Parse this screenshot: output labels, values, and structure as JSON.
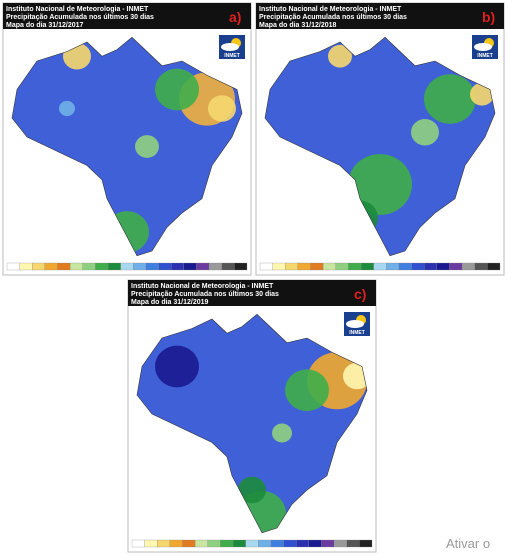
{
  "panels": [
    {
      "header": [
        "Instituto Nacional de Meteorologia - INMET",
        "Precipitação Acumulada nos últimos 30 dias",
        "Mapa do dia 31/12/2017"
      ],
      "label": "a)",
      "logo": "INMET"
    },
    {
      "header": [
        "Instituto Nacional de Meteorologia - INMET",
        "Precipitação Acumulada nos últimos 30 dias",
        "Mapa do dia 31/12/2018"
      ],
      "label": "b)",
      "logo": "INMET"
    },
    {
      "header": [
        "Instituto Nacional de Meteorologia - INMET",
        "Precipitação Acumulada nos últimos 30 dias",
        "Mapa do dia 31/12/2019"
      ],
      "label": "c)",
      "logo": "INMET"
    }
  ],
  "watermark": "Ativar o"
}
